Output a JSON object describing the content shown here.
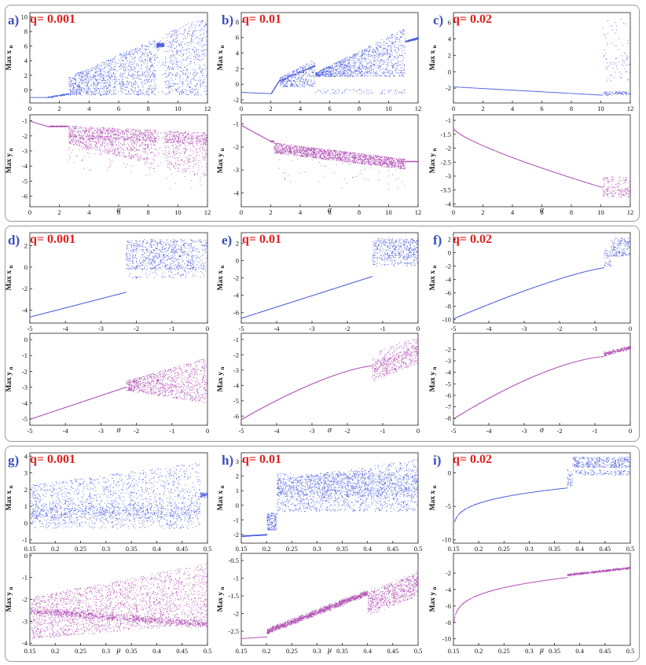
{
  "figure": {
    "description_free": true,
    "colors": {
      "x_series": "#2b3fd6",
      "y_series": "#a12ea4",
      "panel_label": "#3a4fc0",
      "q_label": "#e4201f"
    }
  },
  "chart_data": [
    {
      "id": "a",
      "panel_label": "a)",
      "q_label": "q= 0.001",
      "type": "scatter",
      "sweep": "alpha",
      "top": {
        "ylabel": "Max x",
        "sub": "n",
        "xlim": [
          0,
          12
        ],
        "ylim": [
          -1.8,
          10.6
        ],
        "xticks": [
          0,
          2,
          4,
          6,
          8,
          10,
          12
        ],
        "yticks": [
          0,
          2,
          4,
          6,
          8,
          10
        ],
        "x_ticklabels_shown": true
      },
      "bottom": {
        "ylabel": "Max y",
        "sub": "n",
        "xlim": [
          0,
          12
        ],
        "ylim": [
          -6.7,
          -0.6
        ],
        "xticks": [
          0,
          2,
          4,
          6,
          8,
          10,
          12
        ],
        "yticks": [
          -1,
          -2,
          -3,
          -4,
          -5,
          -6
        ],
        "xlabel": "α"
      }
    },
    {
      "id": "b",
      "panel_label": "b)",
      "q_label": "q= 0.01",
      "type": "scatter",
      "sweep": "alpha",
      "top": {
        "ylabel": "Max x",
        "sub": "n",
        "xlim": [
          0,
          12
        ],
        "ylim": [
          -2.4,
          9.2
        ],
        "xticks": [
          0,
          2,
          4,
          6,
          8,
          10,
          12
        ],
        "yticks": [
          -2,
          0,
          2,
          4,
          6,
          8
        ],
        "x_ticklabels_shown": true
      },
      "bottom": {
        "ylabel": "Max y",
        "sub": "n",
        "xlim": [
          0,
          12
        ],
        "ylim": [
          -4.6,
          -0.6
        ],
        "xticks": [
          0,
          2,
          4,
          6,
          8,
          10,
          12
        ],
        "yticks": [
          -1,
          -2,
          -3,
          -4
        ],
        "xlabel": "α"
      }
    },
    {
      "id": "c",
      "panel_label": "c)",
      "q_label": "q= 0.02",
      "type": "scatter",
      "sweep": "alpha",
      "top": {
        "ylabel": "Max x",
        "sub": "n",
        "xlim": [
          0,
          12
        ],
        "ylim": [
          -3.8,
          7.2
        ],
        "xticks": [
          0,
          2,
          4,
          6,
          8,
          10,
          12
        ],
        "yticks": [
          -2,
          0,
          2,
          4,
          6
        ],
        "x_ticklabels_shown": true
      },
      "bottom": {
        "ylabel": "Max y",
        "sub": "n",
        "xlim": [
          0,
          12
        ],
        "ylim": [
          -4.1,
          -0.8
        ],
        "xticks": [
          0,
          2,
          4,
          6,
          8,
          10,
          12
        ],
        "yticks": [
          -1,
          -1.5,
          -2,
          -2.5,
          -3,
          -3.5,
          -4
        ],
        "xlabel": "α"
      }
    },
    {
      "id": "d",
      "panel_label": "d)",
      "q_label": "q= 0.001",
      "type": "scatter",
      "sweep": "sigma",
      "top": {
        "ylabel": "Max x",
        "sub": "n",
        "xlim": [
          -5,
          0
        ],
        "ylim": [
          -5.2,
          3.2
        ],
        "xticks": [
          -5,
          -4,
          -3,
          -2,
          -1,
          0
        ],
        "yticks": [
          -4,
          -2,
          0,
          2
        ],
        "x_ticklabels_shown": true
      },
      "bottom": {
        "ylabel": "Max y",
        "sub": "n",
        "xlim": [
          -5,
          0
        ],
        "ylim": [
          -5.4,
          0.4
        ],
        "xticks": [
          -5,
          -4,
          -3,
          -2,
          -1,
          0
        ],
        "yticks": [
          0,
          -1,
          -2,
          -3,
          -4,
          -5
        ],
        "xlabel": "σ"
      }
    },
    {
      "id": "e",
      "panel_label": "e)",
      "q_label": "q= 0.01",
      "type": "scatter",
      "sweep": "sigma",
      "top": {
        "ylabel": "Max x",
        "sub": "n",
        "xlim": [
          -5,
          0
        ],
        "ylim": [
          -7.2,
          3.2
        ],
        "xticks": [
          -5,
          -4,
          -3,
          -2,
          -1,
          0
        ],
        "yticks": [
          -6,
          -4,
          -2,
          0,
          2
        ],
        "x_ticklabels_shown": true
      },
      "bottom": {
        "ylabel": "Max y",
        "sub": "n",
        "xlim": [
          -5,
          0
        ],
        "ylim": [
          -6.6,
          -0.6
        ],
        "xticks": [
          -5,
          -4,
          -3,
          -2,
          -1,
          0
        ],
        "yticks": [
          -1,
          -2,
          -3,
          -4,
          -5,
          -6
        ],
        "xlabel": "σ"
      }
    },
    {
      "id": "f",
      "panel_label": "f)",
      "q_label": "q= 0.02",
      "type": "scatter",
      "sweep": "sigma",
      "top": {
        "ylabel": "Max x",
        "sub": "n",
        "xlim": [
          -5,
          0
        ],
        "ylim": [
          -10.5,
          3
        ],
        "xticks": [
          -5,
          -4,
          -3,
          -2,
          -1,
          0
        ],
        "yticks": [
          2,
          0,
          -2,
          -4,
          -6,
          -8,
          -10
        ],
        "x_ticklabels_shown": true
      },
      "bottom": {
        "ylabel": "Max y",
        "sub": "n",
        "xlim": [
          -5,
          0
        ],
        "ylim": [
          -8.6,
          -0.6
        ],
        "xticks": [
          -5,
          -4,
          -3,
          -2,
          -1,
          0
        ],
        "yticks": [
          -2,
          -3,
          -4,
          -5,
          -6,
          -7,
          -8
        ],
        "xlabel": "σ"
      }
    },
    {
      "id": "g",
      "panel_label": "g)",
      "q_label": "q= 0.001",
      "type": "scatter",
      "sweep": "mu",
      "top": {
        "ylabel": "Max x",
        "sub": "n",
        "xlim": [
          0.15,
          0.5
        ],
        "ylim": [
          -1.2,
          4.2
        ],
        "xticks": [
          0.15,
          0.2,
          0.25,
          0.3,
          0.35,
          0.4,
          0.45,
          0.5
        ],
        "yticks": [
          -1,
          0,
          1,
          2,
          3,
          4
        ],
        "x_ticklabels_shown": true
      },
      "bottom": {
        "ylabel": "Max y",
        "sub": "n",
        "xlim": [
          0.15,
          0.5
        ],
        "ylim": [
          -4.1,
          0.1
        ],
        "xticks": [
          0.15,
          0.2,
          0.25,
          0.3,
          0.35,
          0.4,
          0.45,
          0.5
        ],
        "yticks": [
          0,
          -1,
          -2,
          -3,
          -4
        ],
        "xlabel": "μ"
      }
    },
    {
      "id": "h",
      "panel_label": "h)",
      "q_label": "q= 0.01",
      "type": "scatter",
      "sweep": "mu",
      "top": {
        "ylabel": "Max x",
        "sub": "n",
        "xlim": [
          0.15,
          0.5
        ],
        "ylim": [
          -2.6,
          3.6
        ],
        "xticks": [
          0.15,
          0.2,
          0.25,
          0.3,
          0.35,
          0.4,
          0.45,
          0.5
        ],
        "yticks": [
          -2,
          -1,
          0,
          1,
          2,
          3
        ],
        "x_ticklabels_shown": true
      },
      "bottom": {
        "ylabel": "Max y",
        "sub": "n",
        "xlim": [
          0.15,
          0.5
        ],
        "ylim": [
          -2.9,
          -0.3
        ],
        "xticks": [
          0.15,
          0.2,
          0.25,
          0.3,
          0.35,
          0.4,
          0.45,
          0.5
        ],
        "yticks": [
          -0.5,
          -1,
          -1.5,
          -2,
          -2.5
        ],
        "xlabel": "μ"
      }
    },
    {
      "id": "i",
      "panel_label": "i)",
      "q_label": "q= 0.02",
      "type": "scatter",
      "sweep": "mu",
      "top": {
        "ylabel": "Max x",
        "sub": "n",
        "xlim": [
          0.15,
          0.5
        ],
        "ylim": [
          -10.5,
          3
        ],
        "xticks": [
          0.15,
          0.2,
          0.25,
          0.3,
          0.35,
          0.4,
          0.45,
          0.5
        ],
        "yticks": [
          0,
          -5,
          -10
        ],
        "x_ticklabels_shown": true
      },
      "bottom": {
        "ylabel": "Max y",
        "sub": "n",
        "xlim": [
          0.15,
          0.5
        ],
        "ylim": [
          -10.8,
          0.4
        ],
        "xticks": [
          0.15,
          0.2,
          0.25,
          0.3,
          0.35,
          0.4,
          0.45,
          0.5
        ],
        "yticks": [
          -2,
          -4,
          -6,
          -8,
          -10
        ],
        "xlabel": "μ"
      }
    }
  ]
}
